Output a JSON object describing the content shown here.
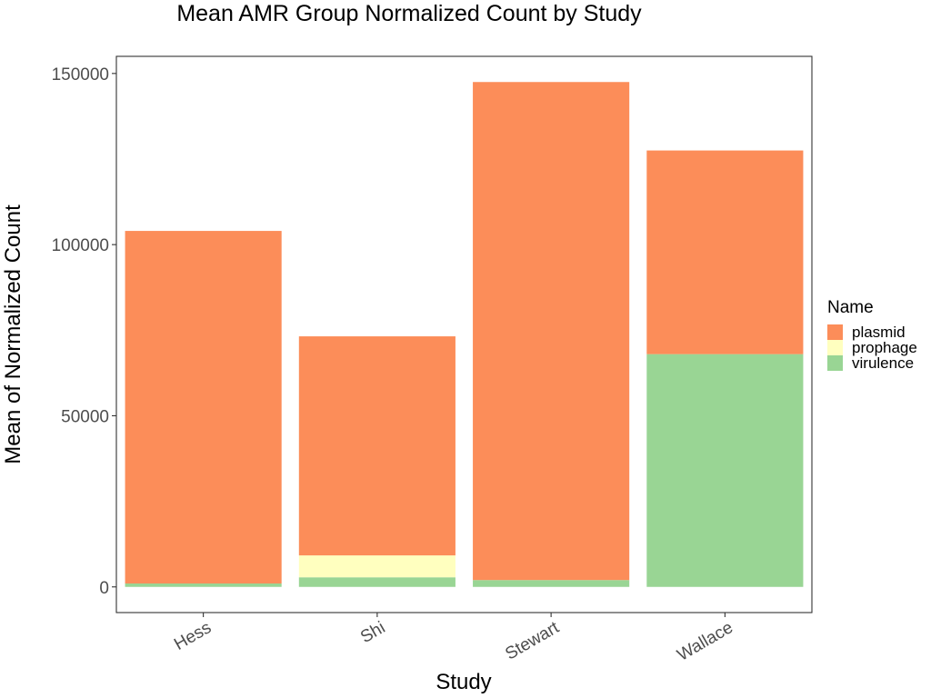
{
  "chart_data": {
    "type": "bar",
    "stacked": true,
    "title": "Mean AMR Group Normalized Count by Study",
    "xlabel": "Study",
    "ylabel": "Mean of Normalized Count",
    "categories": [
      "Hess",
      "Shi",
      "Stewart",
      "Wallace"
    ],
    "ylim": [
      -7500,
      155000
    ],
    "yticks": [
      0,
      50000,
      100000,
      150000
    ],
    "ytick_labels": [
      "0",
      "50000",
      "100000",
      "150000"
    ],
    "series": [
      {
        "name": "virulence",
        "color": "#99d594",
        "values": [
          1000,
          2800,
          2000,
          68000
        ]
      },
      {
        "name": "prophage",
        "color": "#ffffbf",
        "values": [
          0,
          6400,
          0,
          0
        ]
      },
      {
        "name": "plasmid",
        "color": "#fc8d59",
        "values": [
          103000,
          64000,
          145500,
          59500
        ]
      }
    ],
    "legend": {
      "title": "Name",
      "placement": "right",
      "entries": [
        "plasmid",
        "prophage",
        "virulence"
      ]
    },
    "grid": false,
    "panel_border": true
  }
}
